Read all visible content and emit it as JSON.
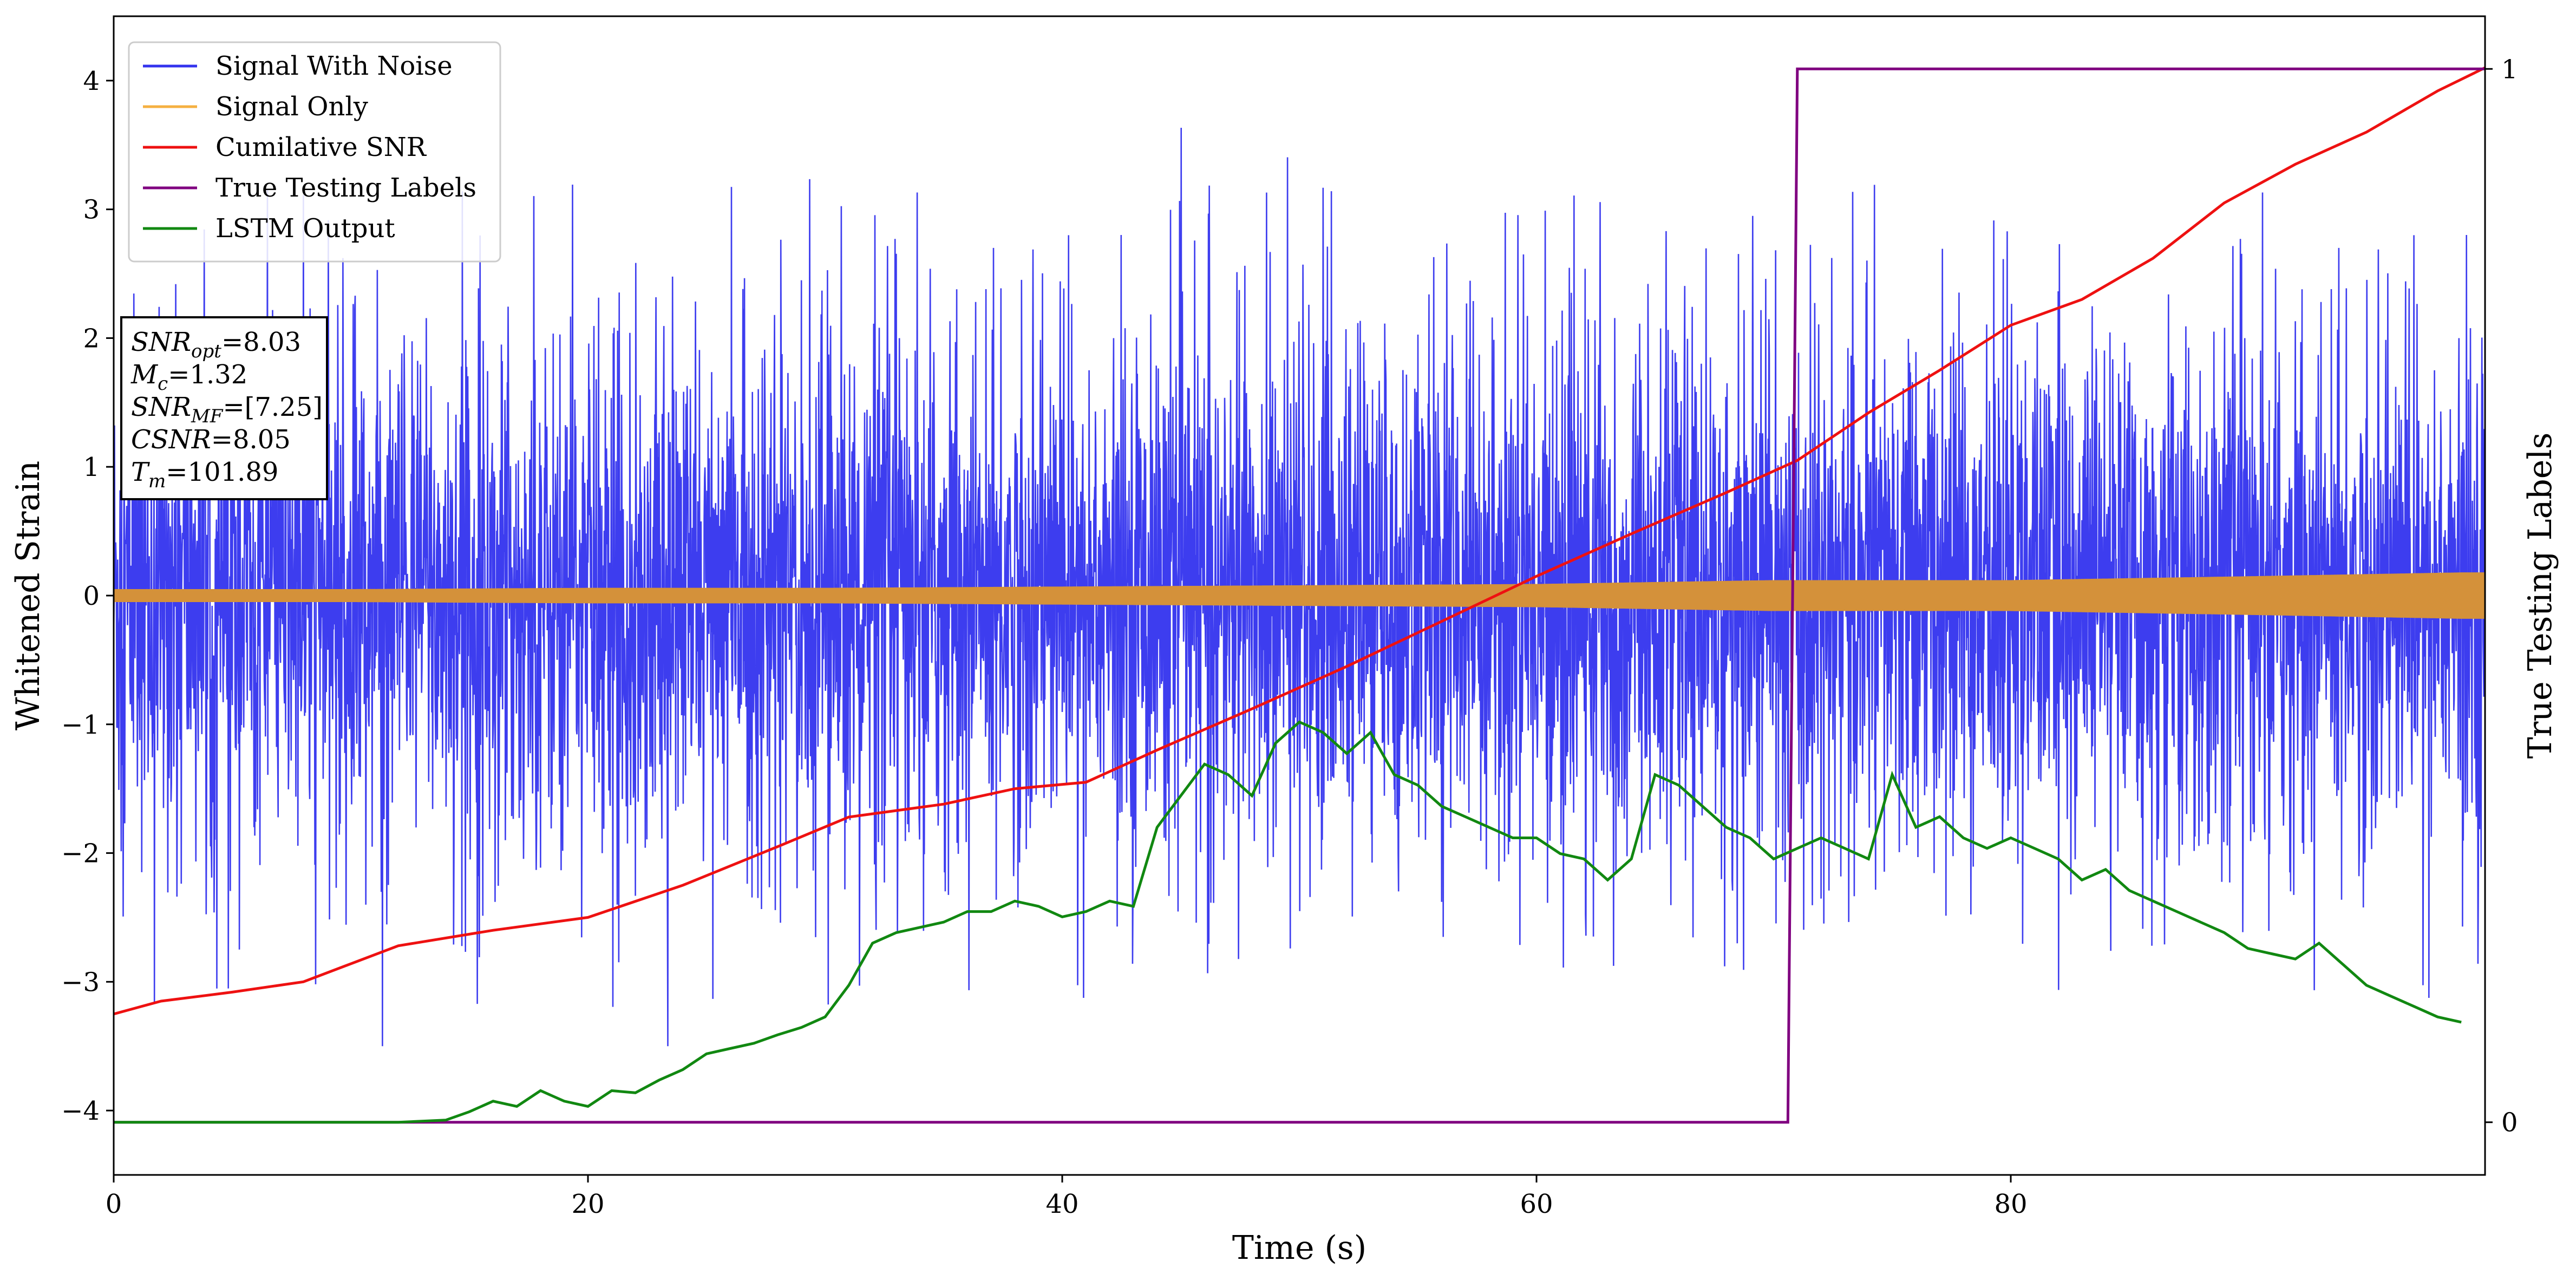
{
  "chart_data": {
    "type": "line",
    "xlabel": "Time (s)",
    "ylabel": "Whitened Strain",
    "y2label": "True Testing Labels",
    "xlim": [
      0,
      100
    ],
    "ylim": [
      -4.5,
      4.5
    ],
    "y2lim": [
      -0.05,
      1.05
    ],
    "x_ticks": [
      0,
      20,
      40,
      60,
      80
    ],
    "y_ticks": [
      -4,
      -3,
      -2,
      -1,
      0,
      1,
      2,
      3,
      4
    ],
    "y2_ticks": [
      0,
      1
    ],
    "grid": false,
    "legend_position": "top-left",
    "series": [
      {
        "name": "Signal With Noise",
        "color": "#3333ee",
        "axis": "left",
        "kind": "noise",
        "approx_range": [
          -3.5,
          4.1
        ]
      },
      {
        "name": "Signal Only",
        "color": "#f5b041",
        "axis": "left",
        "kind": "envelope",
        "x": [
          0,
          10,
          20,
          30,
          40,
          50,
          60,
          70,
          80,
          90,
          99
        ],
        "amplitude": [
          0.05,
          0.05,
          0.06,
          0.06,
          0.07,
          0.08,
          0.09,
          0.12,
          0.12,
          0.15,
          0.18
        ]
      },
      {
        "name": "Cumilative SNR",
        "color": "#ee1111",
        "axis": "left",
        "x": [
          0,
          2,
          5,
          8,
          12,
          16,
          20,
          24,
          28,
          31,
          35,
          38,
          41,
          44,
          48,
          52,
          56,
          60,
          64,
          68,
          71,
          74,
          77,
          80,
          83,
          86,
          89,
          92,
          95,
          98,
          100
        ],
        "y": [
          -3.25,
          -3.15,
          -3.08,
          -3.0,
          -2.72,
          -2.6,
          -2.5,
          -2.25,
          -1.95,
          -1.72,
          -1.62,
          -1.5,
          -1.45,
          -1.2,
          -0.88,
          -0.55,
          -0.2,
          0.15,
          0.48,
          0.8,
          1.05,
          1.42,
          1.75,
          2.1,
          2.3,
          2.62,
          3.05,
          3.35,
          3.6,
          3.92,
          4.1
        ]
      },
      {
        "name": "True Testing Labels",
        "color": "#800080",
        "axis": "right",
        "x": [
          0,
          70.6,
          71.0,
          100
        ],
        "y": [
          0,
          0,
          1,
          1
        ]
      },
      {
        "name": "LSTM Output",
        "color": "#118811",
        "axis": "right",
        "x": [
          0,
          12,
          14,
          15,
          16,
          17,
          18,
          19,
          20,
          21,
          22,
          23,
          24,
          25,
          26,
          27,
          28,
          29,
          30,
          31,
          32,
          33,
          34,
          35,
          36,
          37,
          38,
          39,
          40,
          41,
          42,
          43,
          44,
          45,
          46,
          47,
          48,
          49,
          50,
          51,
          52,
          53,
          54,
          55,
          56,
          57,
          58,
          59,
          60,
          61,
          62,
          63,
          64,
          65,
          66,
          67,
          68,
          69,
          70,
          71,
          72,
          73,
          74,
          75,
          76,
          77,
          78,
          79,
          80,
          81,
          82,
          83,
          84,
          85,
          86,
          87,
          88,
          89,
          90,
          91,
          92,
          93,
          94,
          95,
          96,
          97,
          98,
          99
        ],
        "y": [
          0.0,
          0.0,
          0.002,
          0.01,
          0.02,
          0.015,
          0.03,
          0.02,
          0.015,
          0.03,
          0.028,
          0.04,
          0.05,
          0.065,
          0.07,
          0.075,
          0.083,
          0.09,
          0.1,
          0.13,
          0.17,
          0.18,
          0.185,
          0.19,
          0.2,
          0.2,
          0.21,
          0.205,
          0.195,
          0.2,
          0.21,
          0.205,
          0.28,
          0.31,
          0.34,
          0.33,
          0.31,
          0.36,
          0.38,
          0.37,
          0.35,
          0.37,
          0.33,
          0.32,
          0.3,
          0.29,
          0.28,
          0.27,
          0.27,
          0.255,
          0.25,
          0.23,
          0.25,
          0.33,
          0.32,
          0.3,
          0.28,
          0.27,
          0.25,
          0.26,
          0.27,
          0.26,
          0.25,
          0.33,
          0.28,
          0.29,
          0.27,
          0.26,
          0.27,
          0.26,
          0.25,
          0.23,
          0.24,
          0.22,
          0.21,
          0.2,
          0.19,
          0.18,
          0.165,
          0.16,
          0.155,
          0.17,
          0.15,
          0.13,
          0.12,
          0.11,
          0.1,
          0.095
        ]
      }
    ],
    "annotation_box": {
      "lines": [
        {
          "name": "SNR",
          "sub": "opt",
          "value": "=8.03"
        },
        {
          "name": "M",
          "sub": "c",
          "value": "=1.32"
        },
        {
          "name": "SNR",
          "sub": "MF",
          "value": "=[7.25]"
        },
        {
          "name": "CSNR",
          "sub": "",
          "value": "=8.05"
        },
        {
          "name": "T",
          "sub": "m",
          "value": "=101.89"
        }
      ]
    }
  }
}
